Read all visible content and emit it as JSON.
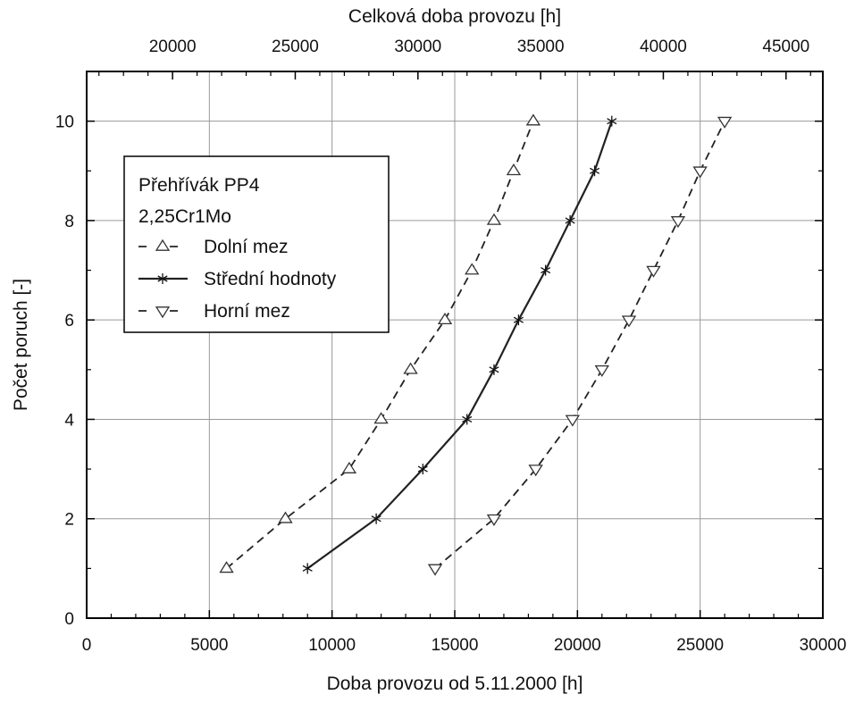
{
  "chart_data": {
    "type": "line",
    "xlabel": "Doba provozu od 5.11.2000 [h]",
    "x2label": "Celková doba provozu [h]",
    "ylabel": "Počet poruch [-]",
    "xlim": [
      0,
      30000
    ],
    "ylim": [
      0,
      11
    ],
    "x2lim": [
      16500,
      46500
    ],
    "x_ticks": [
      "0",
      "5000",
      "10000",
      "15000",
      "20000",
      "25000",
      "30000"
    ],
    "x2_ticks": [
      "20000",
      "25000",
      "30000",
      "35000",
      "40000",
      "45000"
    ],
    "y_ticks": [
      "0",
      "2",
      "4",
      "6",
      "8",
      "10"
    ],
    "grid": true,
    "legend": {
      "title_lines": [
        "Přehřívák PP4",
        "2,25Cr1Mo"
      ],
      "position": "upper-left"
    },
    "series": [
      {
        "name": "Dolní mez",
        "line_style": "dashed",
        "marker": "triangle-up",
        "x": [
          5700,
          8100,
          10700,
          12000,
          13200,
          14600,
          15700,
          16600,
          17400,
          18200
        ],
        "y": [
          1,
          2,
          3,
          4,
          5,
          6,
          7,
          8,
          9,
          10
        ]
      },
      {
        "name": "Střední hodnoty",
        "line_style": "solid",
        "marker": "asterisk",
        "x": [
          9000,
          11800,
          13700,
          15500,
          16600,
          17600,
          18700,
          19700,
          20700,
          21400
        ],
        "y": [
          1,
          2,
          3,
          4,
          5,
          6,
          7,
          8,
          9,
          10
        ]
      },
      {
        "name": "Horní mez",
        "line_style": "dashed",
        "marker": "triangle-down",
        "x": [
          14200,
          16600,
          18300,
          19800,
          21000,
          22100,
          23100,
          24100,
          25000,
          26000
        ],
        "y": [
          1,
          2,
          3,
          4,
          5,
          6,
          7,
          8,
          9,
          10
        ]
      }
    ]
  }
}
